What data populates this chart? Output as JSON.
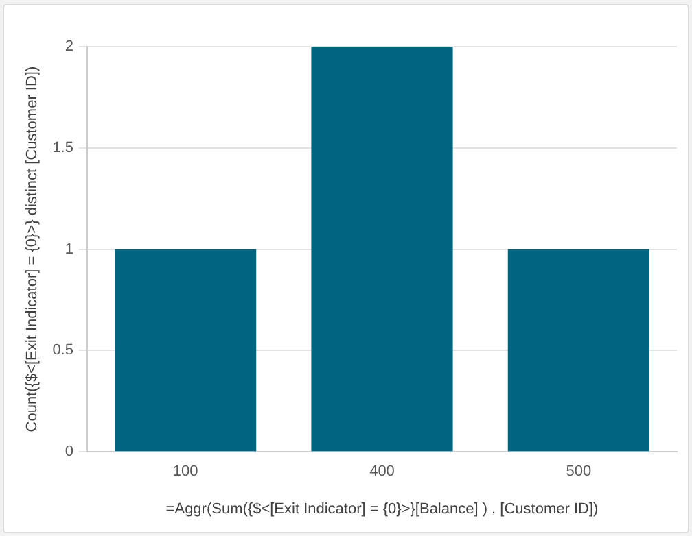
{
  "chart_data": {
    "type": "bar",
    "xlabel": "=Aggr(Sum({$<[Exit Indicator] = {0}>}[Balance] ) , [Customer ID])",
    "ylabel": "Count({$<[Exit Indicator] = {0}>} distinct [Customer ID])",
    "categories": [
      "100",
      "400",
      "500"
    ],
    "values": [
      1,
      2,
      1
    ],
    "color": "#006580",
    "ylim": [
      0,
      2
    ],
    "yticks": [
      0,
      0.5,
      1,
      1.5,
      2
    ],
    "grid": "y"
  }
}
